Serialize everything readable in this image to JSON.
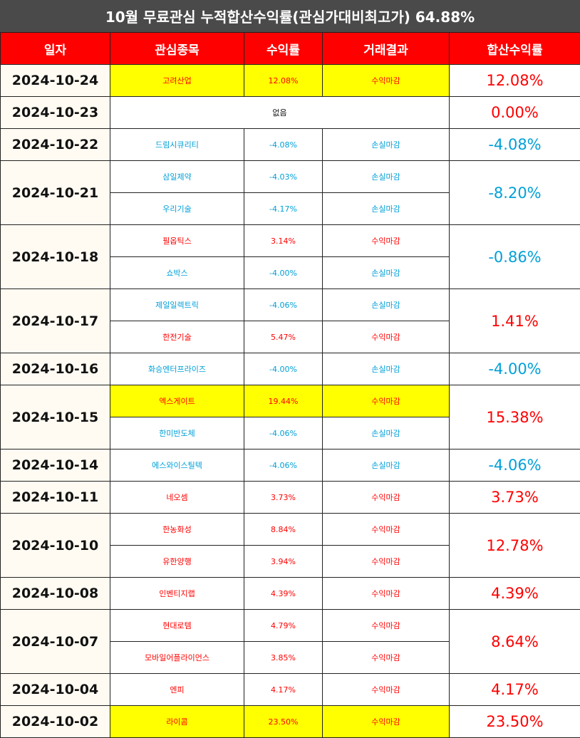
{
  "title": "10월 무료관심 누적합산수익률(관심가대비최고가) 64.88%",
  "headers": [
    "일자",
    "관심종목",
    "수익률",
    "거래결과",
    "합산수익률"
  ],
  "colors": {
    "header_bg": "#ff0000",
    "title_bg": "#4a4a4a",
    "positive": "#ff0000",
    "negative": "#00a0d8",
    "highlight": "#ffff00"
  },
  "groups": [
    {
      "date": "2024-10-24",
      "total": "12.08%",
      "rows": [
        {
          "stock": "고려산업",
          "rate": "12.08%",
          "result": "수익마감",
          "highlight": true
        }
      ]
    },
    {
      "date": "2024-10-23",
      "total": "0.00%",
      "none": "없음",
      "rows": []
    },
    {
      "date": "2024-10-22",
      "total": "-4.08%",
      "rows": [
        {
          "stock": "드림시큐리티",
          "rate": "-4.08%",
          "result": "손실마감"
        }
      ]
    },
    {
      "date": "2024-10-21",
      "total": "-8.20%",
      "rows": [
        {
          "stock": "삼일제약",
          "rate": "-4.03%",
          "result": "손실마감"
        },
        {
          "stock": "우리기술",
          "rate": "-4.17%",
          "result": "손실마감"
        }
      ]
    },
    {
      "date": "2024-10-18",
      "total": "-0.86%",
      "rows": [
        {
          "stock": "필옵틱스",
          "rate": "3.14%",
          "result": "수익마감"
        },
        {
          "stock": "쇼박스",
          "rate": "-4.00%",
          "result": "손실마감"
        }
      ]
    },
    {
      "date": "2024-10-17",
      "total": "1.41%",
      "rows": [
        {
          "stock": "제일일렉트릭",
          "rate": "-4.06%",
          "result": "손실마감"
        },
        {
          "stock": "한전기술",
          "rate": "5.47%",
          "result": "수익마감"
        }
      ]
    },
    {
      "date": "2024-10-16",
      "total": "-4.00%",
      "rows": [
        {
          "stock": "화승엔터프라이즈",
          "rate": "-4.00%",
          "result": "손실마감"
        }
      ]
    },
    {
      "date": "2024-10-15",
      "total": "15.38%",
      "rows": [
        {
          "stock": "엑스게이트",
          "rate": "19.44%",
          "result": "수익마감",
          "highlight": true
        },
        {
          "stock": "한미반도체",
          "rate": "-4.06%",
          "result": "손실마감"
        }
      ]
    },
    {
      "date": "2024-10-14",
      "total": "-4.06%",
      "rows": [
        {
          "stock": "에스와이스틸텍",
          "rate": "-4.06%",
          "result": "손실마감"
        }
      ]
    },
    {
      "date": "2024-10-11",
      "total": "3.73%",
      "rows": [
        {
          "stock": "네오셈",
          "rate": "3.73%",
          "result": "수익마감"
        }
      ]
    },
    {
      "date": "2024-10-10",
      "total": "12.78%",
      "rows": [
        {
          "stock": "한농화성",
          "rate": "8.84%",
          "result": "수익마감"
        },
        {
          "stock": "유한양행",
          "rate": "3.94%",
          "result": "수익마감"
        }
      ]
    },
    {
      "date": "2024-10-08",
      "total": "4.39%",
      "rows": [
        {
          "stock": "인벤티지랩",
          "rate": "4.39%",
          "result": "수익마감"
        }
      ]
    },
    {
      "date": "2024-10-07",
      "total": "8.64%",
      "rows": [
        {
          "stock": "현대로템",
          "rate": "4.79%",
          "result": "수익마감"
        },
        {
          "stock": "모바일어플라이언스",
          "rate": "3.85%",
          "result": "수익마감"
        }
      ]
    },
    {
      "date": "2024-10-04",
      "total": "4.17%",
      "rows": [
        {
          "stock": "엔피",
          "rate": "4.17%",
          "result": "수익마감"
        }
      ]
    },
    {
      "date": "2024-10-02",
      "total": "23.50%",
      "rows": [
        {
          "stock": "라이콤",
          "rate": "23.50%",
          "result": "수익마감",
          "highlight": true
        }
      ]
    }
  ]
}
